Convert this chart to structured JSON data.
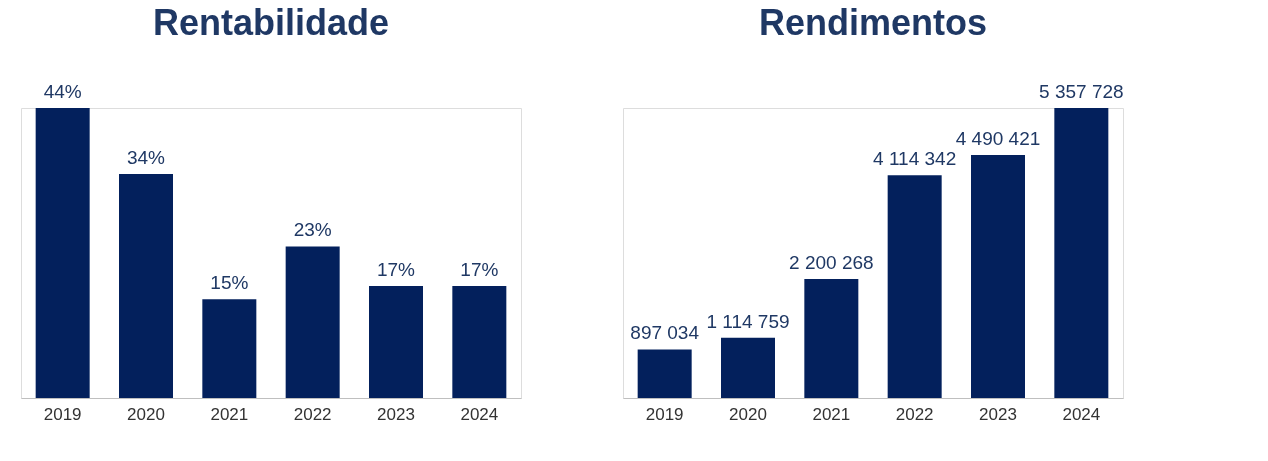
{
  "chart_data": [
    {
      "type": "bar",
      "title": "Rentabilidade",
      "categories": [
        "2019",
        "2020",
        "2021",
        "2022",
        "2023",
        "2024"
      ],
      "values": [
        44,
        34,
        15,
        23,
        17,
        17
      ],
      "value_labels": [
        "44%",
        "34%",
        "15%",
        "23%",
        "17%",
        "17%"
      ],
      "color": "#03205c"
    },
    {
      "type": "bar",
      "title": "Rendimentos",
      "categories": [
        "2019",
        "2020",
        "2021",
        "2022",
        "2023",
        "2024"
      ],
      "values": [
        897034,
        1114759,
        2200268,
        4114342,
        4490421,
        5357728
      ],
      "value_labels": [
        "897 034",
        "1 114 759",
        "2 200 268",
        "4 114 342",
        "4 490 421",
        "5 357 728"
      ],
      "color": "#03205c"
    }
  ]
}
